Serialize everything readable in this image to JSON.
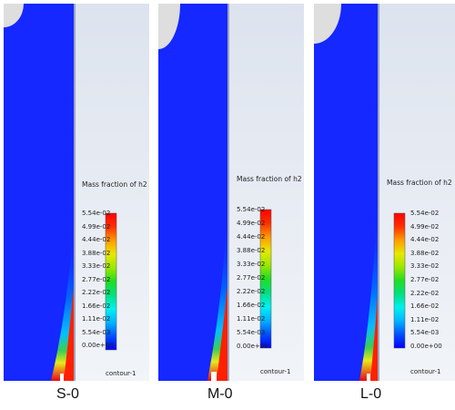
{
  "legend": {
    "title": "Mass fraction of h2",
    "ticks": [
      "5.54e-02",
      "4.99e-02",
      "4.44e-02",
      "3.88e-02",
      "3.33e-02",
      "2.77e-02",
      "2.22e-02",
      "1.66e-02",
      "1.11e-02",
      "5.54e-03",
      "0.00e+00"
    ],
    "footer": "contour-1"
  },
  "panels": [
    {
      "id": "S-0",
      "caption": "S-0"
    },
    {
      "id": "M-0",
      "caption": "M-0"
    },
    {
      "id": "L-0",
      "caption": "L-0"
    }
  ],
  "colors": {
    "field_blue": "#1428ff",
    "background_gray": "#e7ebf2",
    "scale": [
      "#0000ff",
      "#0050ff",
      "#00b4ff",
      "#00f0f0",
      "#00e080",
      "#22dd22",
      "#9be800",
      "#e8e800",
      "#ff9b00",
      "#ff3000",
      "#ff0000"
    ]
  }
}
